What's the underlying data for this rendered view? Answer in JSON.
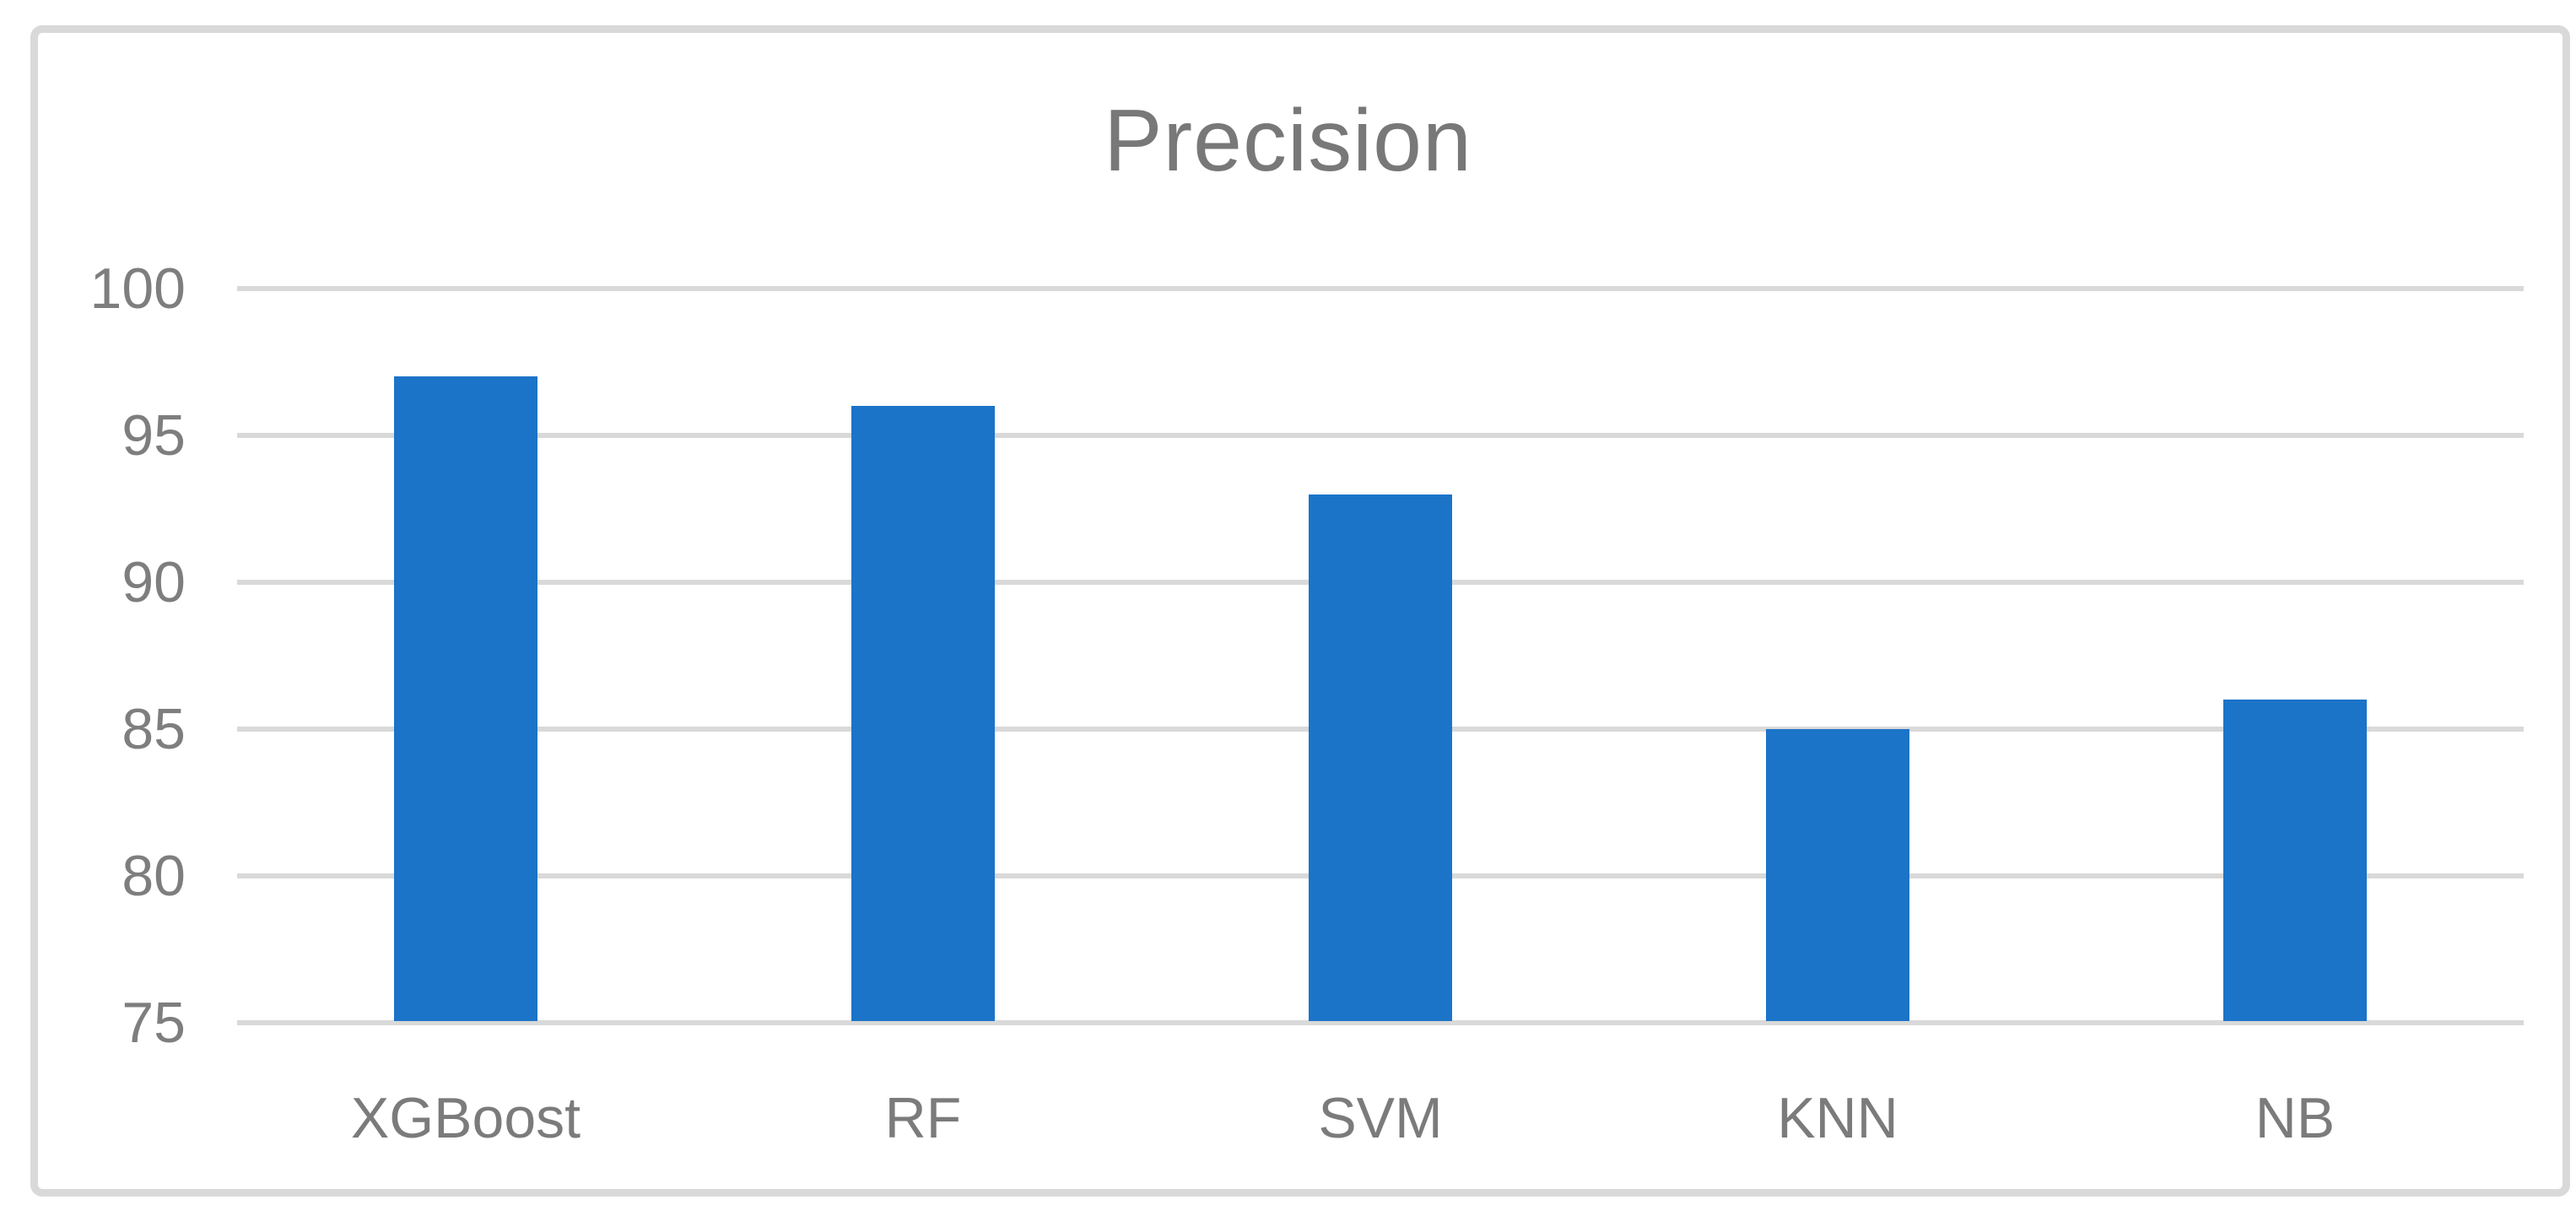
{
  "chart_data": {
    "type": "bar",
    "title": "Precision",
    "categories": [
      "XGBoost",
      "RF",
      "SVM",
      "KNN",
      "NB"
    ],
    "values": [
      97,
      96,
      93,
      85,
      86
    ],
    "xlabel": "",
    "ylabel": "",
    "ylim": [
      75,
      100
    ],
    "ytick_step": 5,
    "yticks": [
      100,
      95,
      90,
      85,
      80,
      75
    ],
    "grid": true,
    "legend": "none",
    "colors": {
      "bar": "#1b74c8",
      "gridline": "#d9d9d9",
      "frame_border": "#d9d9d9",
      "title_text": "#787878",
      "axis_tick_text": "#7e7e7e",
      "category_text": "#7b7b7b",
      "background": "#ffffff"
    }
  }
}
